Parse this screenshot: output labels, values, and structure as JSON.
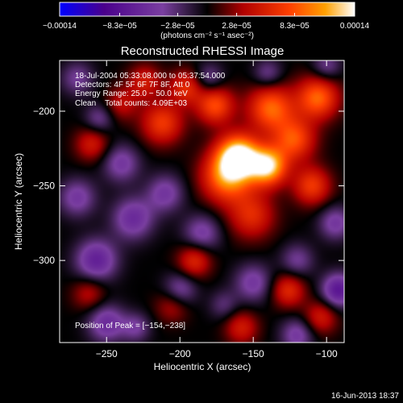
{
  "chart_data": {
    "type": "heatmap",
    "title": "Reconstructed RHESSI Image",
    "xlabel": "Heliocentric X (arcsec)",
    "ylabel": "Heliocentric Y (arcsec)",
    "xlim": [
      -282,
      -88
    ],
    "ylim": [
      -355,
      -166
    ],
    "x_ticks": [
      -250,
      -200,
      -150,
      -100
    ],
    "x_tick_labels": [
      "−250",
      "−200",
      "−150",
      "−100"
    ],
    "y_ticks": [
      -200,
      -250,
      -300
    ],
    "y_tick_labels": [
      "−200",
      "−250",
      "−300"
    ],
    "colorbar": {
      "range": [
        -0.00014,
        0.00014
      ],
      "tick_values": [
        -0.00014,
        -8.3e-05,
        -2.8e-05,
        2.8e-05,
        8.3e-05,
        0.00014
      ],
      "tick_labels": [
        "−0.00014",
        "−8.3e−05",
        "−2.8e−05",
        "2.8e−05",
        "8.3e−05",
        "0.00014"
      ],
      "unit_label": "(photons cm⁻² s⁻¹ asec⁻²)",
      "colors": [
        "#0000ff",
        "#4a008c",
        "#7a3fa0",
        "#000000",
        "#b00000",
        "#ff4000",
        "#ffa000",
        "#ffffff"
      ]
    },
    "annotations": [
      "18-Jul-2004 05:33:08.000 to 05:37:54.000",
      "Detectors: 4F 5F 6F 7F 8F, Att 0",
      "Energy Range: 25.0 − 50.0 keV",
      "Clean    Total counts: 4.09E+03"
    ],
    "peak_label": "Position of Peak = [−154,−238]",
    "peak_position": [
      -154,
      -238
    ],
    "peak_value": 0.00014,
    "blobs": [
      {
        "x": -160,
        "y": -230,
        "value": 0.00014,
        "sigma": 10
      },
      {
        "x": -140,
        "y": -237,
        "value": 0.00013,
        "sigma": 9
      },
      {
        "x": -168,
        "y": -244,
        "value": 0.0001,
        "sigma": 12
      },
      {
        "x": -138,
        "y": -198,
        "value": 9e-05,
        "sigma": 11
      },
      {
        "x": -122,
        "y": -219,
        "value": 8e-05,
        "sigma": 10
      },
      {
        "x": -106,
        "y": -191,
        "value": 9e-05,
        "sigma": 10
      },
      {
        "x": -176,
        "y": -196,
        "value": 8e-05,
        "sigma": 9
      },
      {
        "x": -212,
        "y": -208,
        "value": 7e-05,
        "sigma": 10
      },
      {
        "x": -110,
        "y": -250,
        "value": 7e-05,
        "sigma": 9
      },
      {
        "x": -151,
        "y": -270,
        "value": 6e-05,
        "sigma": 11
      },
      {
        "x": -196,
        "y": -184,
        "value": 6e-05,
        "sigma": 8
      },
      {
        "x": -190,
        "y": -300,
        "value": 6e-05,
        "sigma": 8
      },
      {
        "x": -126,
        "y": -320,
        "value": 6e-05,
        "sigma": 8
      },
      {
        "x": -260,
        "y": -222,
        "value": 5e-05,
        "sigma": 8
      },
      {
        "x": -240,
        "y": -195,
        "value": 4e-05,
        "sigma": 8
      },
      {
        "x": -224,
        "y": -180,
        "value": 5e-05,
        "sigma": 8
      },
      {
        "x": -262,
        "y": -322,
        "value": 4e-05,
        "sigma": 8
      },
      {
        "x": -205,
        "y": -330,
        "value": 4e-05,
        "sigma": 8
      },
      {
        "x": -158,
        "y": -345,
        "value": 5e-05,
        "sigma": 8
      },
      {
        "x": -104,
        "y": -338,
        "value": 5e-05,
        "sigma": 8
      },
      {
        "x": -232,
        "y": -272,
        "value": -6e-05,
        "sigma": 10
      },
      {
        "x": -257,
        "y": -300,
        "value": -7e-05,
        "sigma": 10
      },
      {
        "x": -210,
        "y": -255,
        "value": -5e-05,
        "sigma": 9
      },
      {
        "x": -250,
        "y": -342,
        "value": -6e-05,
        "sigma": 9
      },
      {
        "x": -185,
        "y": -282,
        "value": -5e-05,
        "sigma": 9
      },
      {
        "x": -200,
        "y": -320,
        "value": -5e-05,
        "sigma": 8
      },
      {
        "x": -150,
        "y": -315,
        "value": -5e-05,
        "sigma": 9
      },
      {
        "x": -120,
        "y": -300,
        "value": -4e-05,
        "sigma": 8
      },
      {
        "x": -92,
        "y": -320,
        "value": -8e-05,
        "sigma": 8
      },
      {
        "x": -94,
        "y": -275,
        "value": -5e-05,
        "sigma": 8
      },
      {
        "x": -240,
        "y": -235,
        "value": -5e-05,
        "sigma": 9
      },
      {
        "x": -270,
        "y": -258,
        "value": -5e-05,
        "sigma": 9
      },
      {
        "x": -270,
        "y": -178,
        "value": -4e-05,
        "sigma": 8
      },
      {
        "x": -255,
        "y": -205,
        "value": -4e-05,
        "sigma": 7
      },
      {
        "x": -180,
        "y": -178,
        "value": -4e-05,
        "sigma": 7
      },
      {
        "x": -140,
        "y": -175,
        "value": -4e-05,
        "sigma": 7
      },
      {
        "x": -100,
        "y": -170,
        "value": -4e-05,
        "sigma": 7
      },
      {
        "x": -120,
        "y": -350,
        "value": -5e-05,
        "sigma": 8
      },
      {
        "x": -170,
        "y": -330,
        "value": -3e-05,
        "sigma": 7
      },
      {
        "x": -230,
        "y": -345,
        "value": -4e-05,
        "sigma": 7
      }
    ]
  },
  "footer": {
    "timestamp": "16-Jun-2013 18:37"
  }
}
